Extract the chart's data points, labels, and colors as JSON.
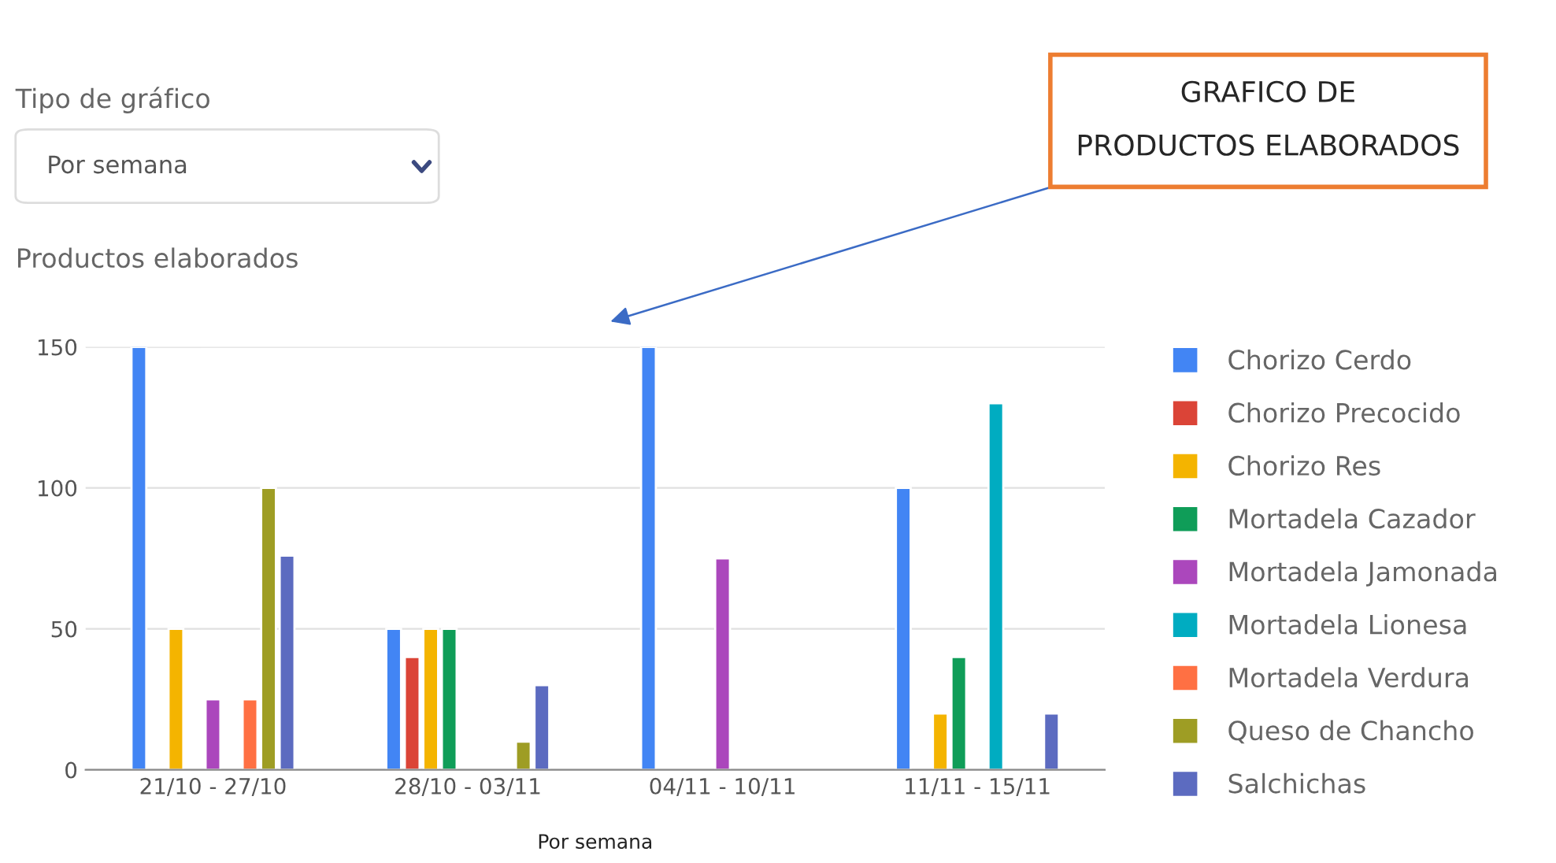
{
  "chart_data": {
    "type": "bar",
    "title": "Productos elaborados",
    "xlabel": "Por semana",
    "categories": [
      "21/10 - 27/10",
      "28/10 - 03/11",
      "04/11 - 10/11",
      "11/11 - 15/11"
    ],
    "series": [
      {
        "name": "Chorizo Cerdo",
        "color": "#4285f4",
        "values": [
          150,
          50,
          150,
          100
        ]
      },
      {
        "name": "Chorizo Precocido",
        "color": "#db4437",
        "values": [
          null,
          40,
          null,
          null
        ]
      },
      {
        "name": "Chorizo Res",
        "color": "#f4b400",
        "values": [
          50,
          50,
          null,
          20
        ]
      },
      {
        "name": "Mortadela Cazador",
        "color": "#0f9d58",
        "values": [
          null,
          50,
          null,
          40
        ]
      },
      {
        "name": "Mortadela Jamonada",
        "color": "#ab47bc",
        "values": [
          25,
          null,
          75,
          null
        ]
      },
      {
        "name": "Mortadela Lionesa",
        "color": "#00acc1",
        "values": [
          null,
          null,
          null,
          130
        ]
      },
      {
        "name": "Mortadela Verdura",
        "color": "#ff7043",
        "values": [
          25,
          null,
          null,
          null
        ]
      },
      {
        "name": "Queso de Chancho",
        "color": "#9e9d24",
        "values": [
          100,
          10,
          null,
          null
        ]
      },
      {
        "name": "Salchichas",
        "color": "#5c6bc0",
        "values": [
          76,
          30,
          null,
          20
        ]
      }
    ],
    "ylim": [
      0,
      150
    ],
    "yticks": [
      0,
      50,
      100,
      150
    ],
    "grid": "y",
    "legend": "right",
    "annotations": [
      "Tipo de gráfico",
      "Por semana",
      "GRAFICO DE\nPRODUCTOS ELABORADOS"
    ]
  }
}
